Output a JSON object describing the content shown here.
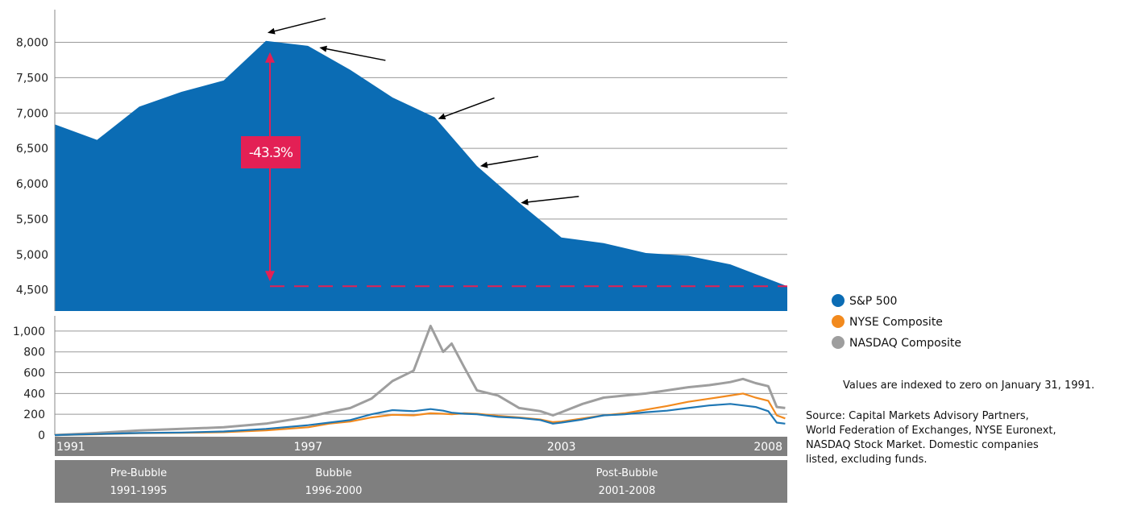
{
  "chart_data": [
    {
      "type": "area",
      "title": "",
      "xlabel": "",
      "ylabel": "",
      "ylim": [
        4200,
        8200
      ],
      "yticks": [
        4500,
        5000,
        5500,
        6000,
        6500,
        7000,
        7500,
        8000
      ],
      "ytick_labels": [
        "4,500",
        "5,000",
        "5,500",
        "6,000",
        "6,500",
        "7,000",
        "7,500",
        "8,000"
      ],
      "x": [
        1991,
        1992,
        1993,
        1994,
        1995,
        1996,
        1997,
        1998,
        1999,
        2000,
        2001,
        2002,
        2003,
        2004,
        2005,
        2006,
        2007,
        2008
      ],
      "series": [
        {
          "name": "",
          "color": "#0b6cb4",
          "values": [
            6840,
            6620,
            7090,
            7300,
            7460,
            8020,
            7950,
            7610,
            7220,
            6940,
            6250,
            5730,
            5240,
            5160,
            5020,
            4980,
            4860,
            4550
          ]
        }
      ],
      "annotation": {
        "label": "-43.3%",
        "color": "#e32055",
        "from": 8020,
        "to": 4550
      },
      "arrow_count": 5
    },
    {
      "type": "line",
      "title": "",
      "xlabel": "",
      "ylabel": "",
      "ylim": [
        0,
        1100
      ],
      "yticks": [
        0,
        200,
        400,
        600,
        800,
        1000
      ],
      "ytick_labels": [
        "0",
        "200",
        "400",
        "600",
        "800",
        "1,000"
      ],
      "xticks": [
        "1991",
        "1997",
        "2003",
        "2008"
      ],
      "x": [
        1991.0,
        1992.0,
        1993.0,
        1994.0,
        1995.0,
        1996.0,
        1997.0,
        1997.5,
        1998.0,
        1998.5,
        1999.0,
        1999.5,
        1999.9,
        2000.2,
        2000.4,
        2000.7,
        2001.0,
        2001.5,
        2002.0,
        2002.5,
        2002.8,
        2003.0,
        2003.5,
        2004.0,
        2004.5,
        2005.0,
        2005.5,
        2006.0,
        2006.5,
        2007.0,
        2007.3,
        2007.6,
        2007.9,
        2008.1,
        2008.3
      ],
      "series": [
        {
          "name": "S&P 500",
          "color": "#1f77b4",
          "values": [
            0,
            10,
            20,
            25,
            35,
            60,
            95,
            120,
            145,
            200,
            240,
            230,
            250,
            235,
            215,
            205,
            200,
            175,
            165,
            145,
            110,
            120,
            150,
            190,
            200,
            220,
            235,
            260,
            285,
            300,
            285,
            270,
            230,
            120,
            110
          ]
        },
        {
          "name": "NYSE Composite",
          "color": "#f28a1e",
          "values": [
            0,
            8,
            18,
            22,
            28,
            45,
            75,
            110,
            130,
            170,
            195,
            190,
            210,
            205,
            200,
            210,
            205,
            185,
            170,
            150,
            125,
            130,
            160,
            190,
            210,
            245,
            280,
            320,
            350,
            380,
            400,
            360,
            330,
            190,
            160
          ]
        },
        {
          "name": "NASDAQ Composite",
          "color": "#9e9e9e",
          "values": [
            0,
            20,
            45,
            60,
            75,
            110,
            175,
            220,
            260,
            350,
            520,
            620,
            1050,
            800,
            880,
            650,
            430,
            380,
            260,
            230,
            190,
            220,
            300,
            360,
            380,
            400,
            430,
            460,
            480,
            510,
            540,
            500,
            470,
            270,
            260
          ]
        }
      ],
      "legend_position": "right"
    }
  ],
  "periods": [
    {
      "name": "Pre-Bubble",
      "range": "1991-1995"
    },
    {
      "name": "Bubble",
      "range": "1996-2000"
    },
    {
      "name": "Post-Bubble",
      "range": "2001-2008"
    }
  ],
  "note": "Values are indexed to zero on January 31, 1991.",
  "source_lines": [
    "Source: Capital Markets Advisory Partners,",
    "World Federation of Exchanges, NYSE Euronext,",
    "NASDAQ Stock Market. Domestic companies",
    "listed, excluding funds."
  ],
  "colors": {
    "area": "#0b6cb4",
    "band": "#7f7f7f",
    "grid": "#999999",
    "accent": "#e32055"
  }
}
